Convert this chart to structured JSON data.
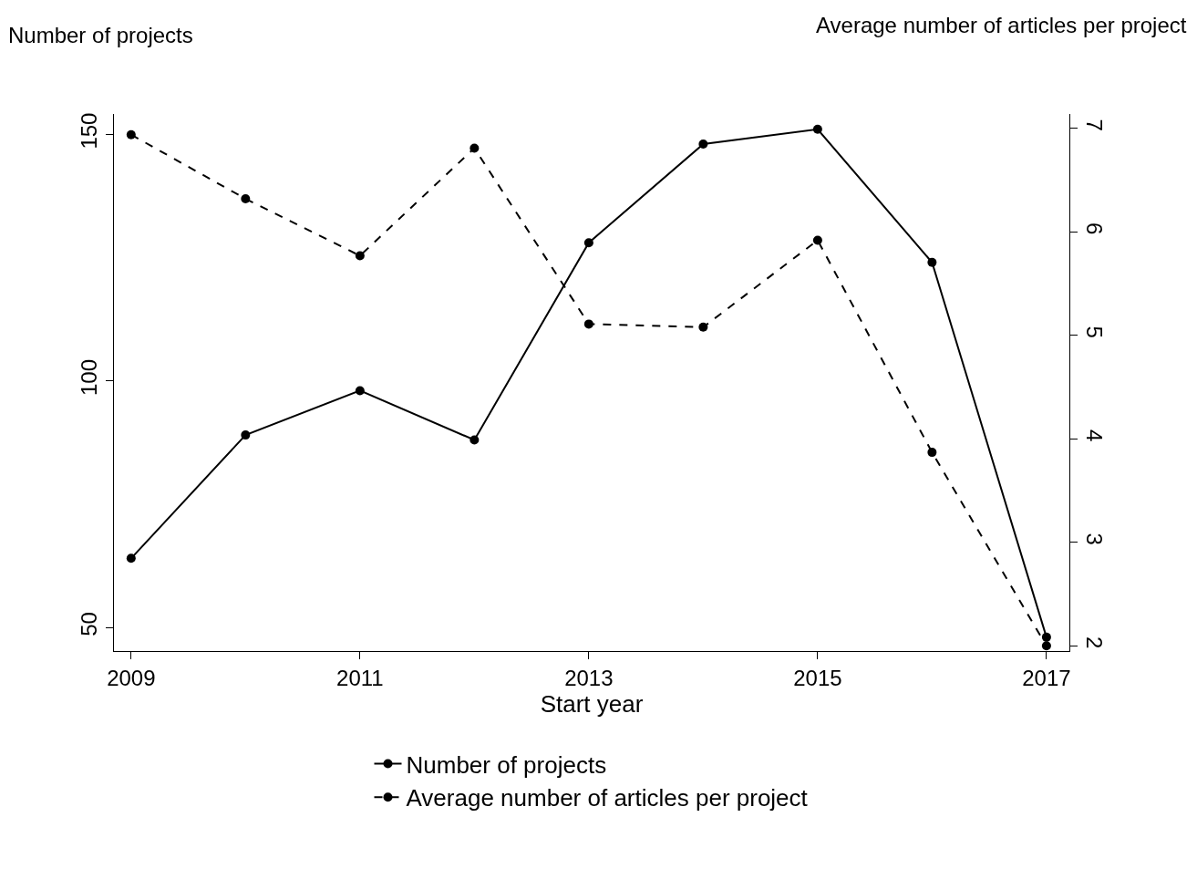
{
  "chart_data": {
    "type": "line",
    "xlabel": "Start year",
    "ylabel": "Number of projects",
    "y2label": "Average number of articles per project",
    "x": [
      2009,
      2010,
      2011,
      2012,
      2013,
      2014,
      2015,
      2016,
      2017
    ],
    "series": [
      {
        "name": "Number of projects",
        "color": "#000000",
        "line_style": "solid",
        "values": [
          64,
          89,
          98,
          88,
          128,
          148,
          151,
          124,
          48
        ]
      },
      {
        "name": "Average number of articles per project",
        "color": "#000000",
        "line_style": "dashed",
        "axis": "y2",
        "values": [
          6.94,
          6.32,
          5.77,
          6.81,
          5.11,
          5.08,
          5.92,
          3.87,
          2.0
        ]
      }
    ],
    "xlim": [
      2008.85,
      2017.2
    ],
    "xticks": [
      2009,
      2011,
      2013,
      2015,
      2017
    ],
    "ylim": [
      45.2,
      154.1
    ],
    "yticks": [
      50,
      100,
      150
    ],
    "y2lim": [
      1.95,
      7.14
    ],
    "y2ticks": [
      2,
      3,
      4,
      5,
      6,
      7
    ],
    "marker": "circle",
    "legend": "bottom"
  }
}
